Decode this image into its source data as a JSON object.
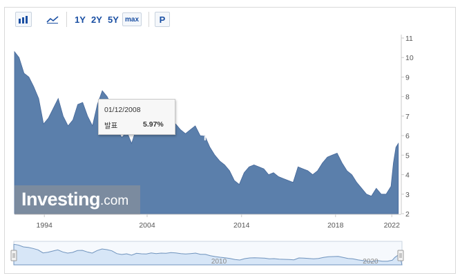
{
  "toolbar": {
    "bar_chart_icon": "bar-chart-icon",
    "line_chart_icon": "line-chart-icon",
    "ranges": [
      "1Y",
      "2Y",
      "5Y",
      "max"
    ],
    "p_label": "P"
  },
  "tooltip": {
    "date": "01/12/2008",
    "label": "발표",
    "value": "5.97%"
  },
  "logo": {
    "brand": "Investing",
    "suffix": ".com"
  },
  "navigator": {
    "labels": [
      "2010",
      "2020"
    ]
  },
  "colors": {
    "area_fill": "#5b7fab",
    "area_stroke": "#46689a",
    "navigator_fill": "#d7e6f7",
    "navigator_line": "#6f93bd",
    "toolbar_text": "#1a4fa3"
  },
  "chart_data": {
    "type": "area",
    "title": "",
    "xlabel": "",
    "ylabel": "",
    "x_tick_labels": [
      "1994",
      "2004",
      "2014",
      "2018",
      "2022"
    ],
    "y_tick_labels": [
      "2",
      "3",
      "4",
      "5",
      "6",
      "7",
      "8",
      "9",
      "10",
      "11"
    ],
    "ylim": [
      2,
      11
    ],
    "grid": false,
    "series": [
      {
        "values": [
          [
            "1989-06",
            10.3
          ],
          [
            "1989-12",
            10.0
          ],
          [
            "1990-06",
            9.2
          ],
          [
            "1990-12",
            9.0
          ],
          [
            "1991-06",
            8.5
          ],
          [
            "1991-12",
            7.9
          ],
          [
            "1992-06",
            6.6
          ],
          [
            "1992-12",
            6.9
          ],
          [
            "1993-06",
            7.4
          ],
          [
            "1993-12",
            7.9
          ],
          [
            "1994-06",
            7.0
          ],
          [
            "1994-12",
            6.5
          ],
          [
            "1995-06",
            6.8
          ],
          [
            "1995-12",
            7.6
          ],
          [
            "1996-06",
            7.7
          ],
          [
            "1996-12",
            7.0
          ],
          [
            "1997-06",
            6.5
          ],
          [
            "1997-12",
            7.6
          ],
          [
            "1998-06",
            8.3
          ],
          [
            "1998-12",
            8.0
          ],
          [
            "1999-06",
            7.5
          ],
          [
            "1999-12",
            6.3
          ],
          [
            "2000-06",
            5.9
          ],
          [
            "2000-12",
            6.2
          ],
          [
            "2001-06",
            5.6
          ],
          [
            "2001-12",
            6.4
          ],
          [
            "2002-06",
            6.2
          ],
          [
            "2002-12",
            6.1
          ],
          [
            "2003-06",
            6.6
          ],
          [
            "2003-12",
            6.3
          ],
          [
            "2004-06",
            6.5
          ],
          [
            "2004-12",
            6.4
          ],
          [
            "2005-06",
            6.7
          ],
          [
            "2005-12",
            6.6
          ],
          [
            "2006-06",
            6.3
          ],
          [
            "2006-12",
            6.1
          ],
          [
            "2007-06",
            6.3
          ],
          [
            "2007-12",
            6.5
          ],
          [
            "2008-06",
            6.0
          ],
          [
            "2008-12",
            5.97
          ],
          [
            "2009-06",
            5.4
          ],
          [
            "2009-12",
            5.0
          ],
          [
            "2010-06",
            4.7
          ],
          [
            "2010-12",
            4.5
          ],
          [
            "2011-06",
            4.2
          ],
          [
            "2011-12",
            3.7
          ],
          [
            "2012-06",
            3.5
          ],
          [
            "2012-12",
            4.1
          ],
          [
            "2013-06",
            4.4
          ],
          [
            "2013-12",
            4.5
          ],
          [
            "2014-06",
            4.4
          ],
          [
            "2014-12",
            4.3
          ],
          [
            "2015-06",
            4.0
          ],
          [
            "2015-12",
            4.1
          ],
          [
            "2016-06",
            3.9
          ],
          [
            "2016-12",
            3.8
          ],
          [
            "2017-06",
            3.7
          ],
          [
            "2017-12",
            3.6
          ],
          [
            "2018-06",
            4.4
          ],
          [
            "2018-12",
            4.3
          ],
          [
            "2019-06",
            4.2
          ],
          [
            "2019-12",
            4.0
          ],
          [
            "2020-06",
            4.2
          ],
          [
            "2020-12",
            4.6
          ],
          [
            "2021-06",
            4.9
          ],
          [
            "2021-12",
            5.0
          ],
          [
            "2022-06",
            5.1
          ],
          [
            "2022-12",
            4.6
          ],
          [
            "2023-06",
            4.2
          ],
          [
            "2023-12",
            4.0
          ],
          [
            "2024-06",
            3.6
          ],
          [
            "2024-12",
            3.3
          ],
          [
            "2025-06",
            3.0
          ],
          [
            "2025-12",
            2.9
          ],
          [
            "2026-06",
            3.3
          ],
          [
            "2026-12",
            3.0
          ],
          [
            "2027-06",
            3.0
          ],
          [
            "2027-12",
            3.4
          ],
          [
            "2028-03",
            4.6
          ],
          [
            "2028-06",
            5.4
          ],
          [
            "2028-09",
            5.6
          ]
        ]
      }
    ]
  }
}
